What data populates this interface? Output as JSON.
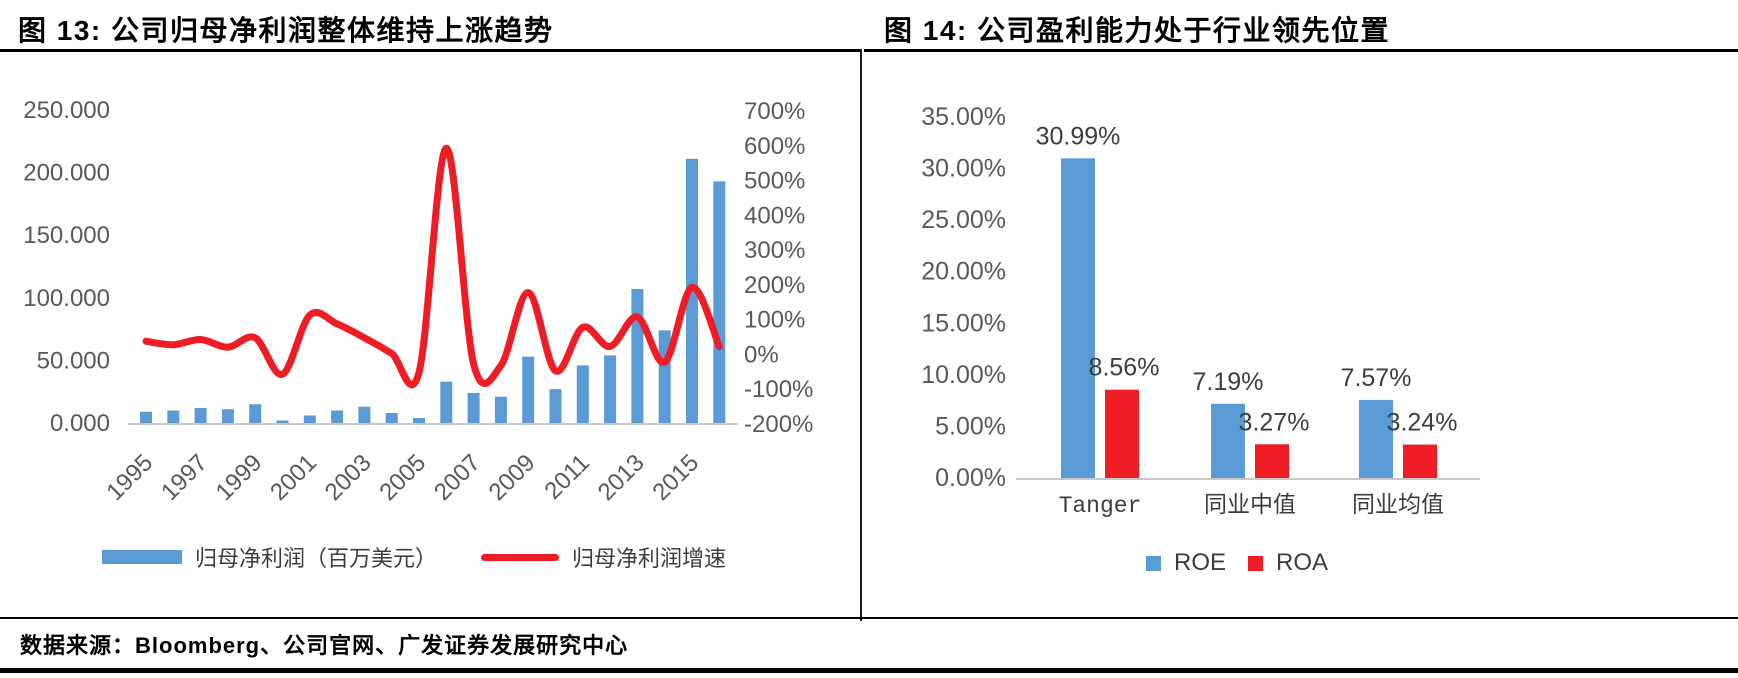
{
  "page": {
    "source_note": "数据来源：Bloomberg、公司官网、广发证券发展研究中心"
  },
  "colors": {
    "bar_blue": "#5B9BD5",
    "line_red": "#EE1C25",
    "axis_text": "#595959",
    "label_text": "#3d3d3d",
    "baseline_gray": "#c9c9c9"
  },
  "chart_data": [
    {
      "type": "combo-bar-line",
      "title": "图 13:  公司归母净利润整体维持上涨趋势",
      "categories": [
        "1995",
        "1996",
        "1997",
        "1998",
        "1999",
        "2000",
        "2001",
        "2002",
        "2003",
        "2004",
        "2005",
        "2006",
        "2007",
        "2008",
        "2009",
        "2010",
        "2011",
        "2012",
        "2013",
        "2014",
        "2015",
        "2016"
      ],
      "x_tick_labels": [
        "1995",
        "1997",
        "1999",
        "2001",
        "2003",
        "2005",
        "2007",
        "2009",
        "2011",
        "2013",
        "2015"
      ],
      "series": [
        {
          "name": "归母净利润（百万美元）",
          "type": "bar",
          "axis": "left",
          "color": "#5B9BD5",
          "values": [
            9,
            10,
            12,
            11,
            15,
            2,
            6,
            10,
            13,
            8,
            4,
            33,
            24,
            21,
            53,
            27,
            46,
            54,
            107,
            74,
            211,
            193
          ]
        },
        {
          "name": "归母净利润增速",
          "type": "line",
          "axis": "right",
          "color": "#EE1C25",
          "values": [
            35,
            25,
            40,
            18,
            45,
            -60,
            110,
            85,
            45,
            0,
            -55,
            590,
            -30,
            -35,
            175,
            -50,
            75,
            20,
            105,
            -25,
            190,
            20
          ]
        }
      ],
      "left_axis": {
        "ticks": [
          "0.000",
          "50.000",
          "100.000",
          "150.000",
          "200.000",
          "250.000"
        ],
        "min": 0,
        "max": 250,
        "step": 50
      },
      "right_axis": {
        "ticks": [
          "-200%",
          "-100%",
          "0%",
          "100%",
          "200%",
          "300%",
          "400%",
          "500%",
          "600%",
          "700%"
        ],
        "min": -200,
        "max": 700,
        "step": 100
      },
      "grid": "off",
      "legend_position": "bottom"
    },
    {
      "type": "bar",
      "title": "图 14:  公司盈利能力处于行业领先位置",
      "categories": [
        "Tanger",
        "同业中值",
        "同业均值"
      ],
      "series": [
        {
          "name": "ROE",
          "color": "#5B9BD5",
          "values": [
            30.99,
            7.19,
            7.57
          ],
          "labels": [
            "30.99%",
            "7.19%",
            "7.57%"
          ]
        },
        {
          "name": "ROA",
          "color": "#EE1C25",
          "values": [
            8.56,
            3.27,
            3.24
          ],
          "labels": [
            "8.56%",
            "3.27%",
            "3.24%"
          ]
        }
      ],
      "y_axis": {
        "ticks": [
          "0.00%",
          "5.00%",
          "10.00%",
          "15.00%",
          "20.00%",
          "25.00%",
          "30.00%",
          "35.00%"
        ],
        "min": 0,
        "max": 35,
        "step": 5
      },
      "grid": "off",
      "legend_position": "bottom"
    }
  ]
}
